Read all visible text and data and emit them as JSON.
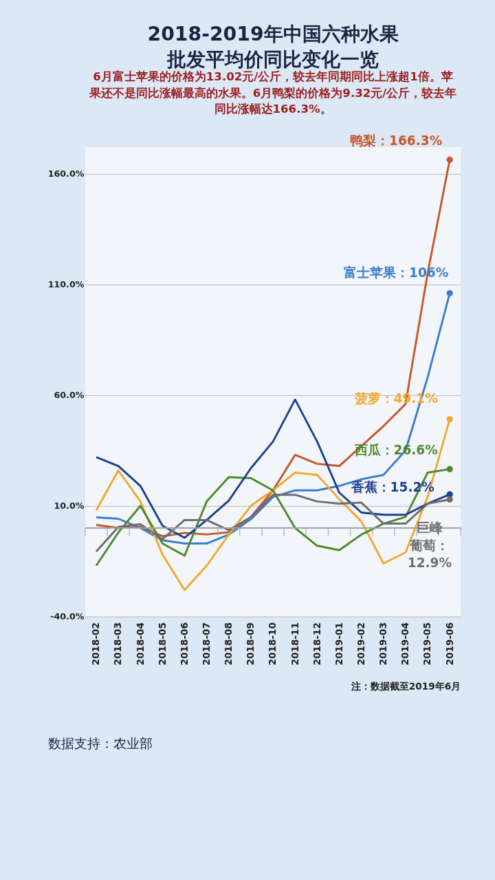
{
  "chart_data": {
    "type": "line",
    "title": "2018-2019年中国六种水果批发平均价同比变化一览",
    "subtitle": "6月富士苹果的价格为13.02元/公斤，较去年同期同比上涨超1倍。苹果还不是同比涨幅最高的水果。6月鸭梨的价格为9.32元/公斤，较去年同比涨幅达166.3%。",
    "categories": [
      "2018-02",
      "2018-03",
      "2018-04",
      "2018-05",
      "2018-06",
      "2018-07",
      "2018-08",
      "2018-09",
      "2018-10",
      "2018-11",
      "2018-12",
      "2019-01",
      "2019-02",
      "2019-03",
      "2019-04",
      "2019-05",
      "2019-06"
    ],
    "series": [
      {
        "color": "#c4572a",
        "values": [
          1.4,
          0,
          0.5,
          -3.7,
          -2.2,
          -2.9,
          -1.9,
          5,
          17,
          33,
          29,
          28,
          37,
          46,
          56,
          115,
          166.3
        ]
      },
      {
        "color": "#3d7cc9",
        "values": [
          4.8,
          4.2,
          0,
          -5.5,
          -7,
          -7,
          -3,
          4,
          14,
          17,
          17,
          19,
          22,
          24,
          35,
          68,
          106
        ]
      },
      {
        "color": "#f0a830",
        "values": [
          8,
          26,
          12,
          -12,
          -28,
          -17,
          -3,
          10,
          17,
          25,
          24,
          13,
          3,
          -16,
          -11,
          14,
          49.1
        ]
      },
      {
        "color": "#4e8a2a",
        "values": [
          -17,
          -2,
          10,
          -7,
          -12.5,
          12,
          23,
          22.5,
          17,
          0,
          -8,
          -10,
          -3,
          2,
          5,
          25,
          26.6
        ]
      },
      {
        "color": "#1f3f8f",
        "values": [
          32,
          28,
          19,
          1,
          -4.4,
          3.6,
          12.4,
          27,
          39,
          58,
          39,
          16,
          7,
          6,
          6,
          11,
          15.2
        ]
      },
      {
        "color": "#6e6e6e",
        "values": [
          -10.6,
          0.5,
          1.7,
          -5,
          3.6,
          3.6,
          -1,
          5,
          15,
          15,
          12,
          11,
          11.5,
          2,
          2,
          11,
          12.9
        ]
      }
    ],
    "annotations": [
      {
        "text": "鸭梨：166.3%",
        "x": "2019-06",
        "y": 166.3
      },
      {
        "text": "富士苹果：106%",
        "x": "2019-06",
        "y": 106
      },
      {
        "text": "菠萝：49.1%",
        "x": "2019-06",
        "y": 49.1
      },
      {
        "text": "西瓜：26.6%",
        "x": "2019-06",
        "y": 26.6
      },
      {
        "text": "香蕉：15.2%",
        "x": "2019-06",
        "y": 15.2
      },
      {
        "text": "巨峰葡萄：12.9%",
        "x": "2019-06",
        "y": 12.9
      },
      "注：数据截至2019年6月",
      "数据支持：农业部"
    ],
    "ylim": [
      -40,
      172
    ],
    "yticks": [
      {
        "value": -40,
        "label": "-40.0%"
      },
      {
        "value": 10,
        "label": "10.0%"
      },
      {
        "value": 60,
        "label": "60.0%"
      },
      {
        "value": 110,
        "label": "110.0%"
      },
      {
        "value": 160,
        "label": "160.0%"
      }
    ],
    "ref_lines": [
      {
        "axis": "y",
        "value": 0,
        "color": "#a0a0a0"
      }
    ],
    "grid": "y",
    "line_style": "solid"
  }
}
